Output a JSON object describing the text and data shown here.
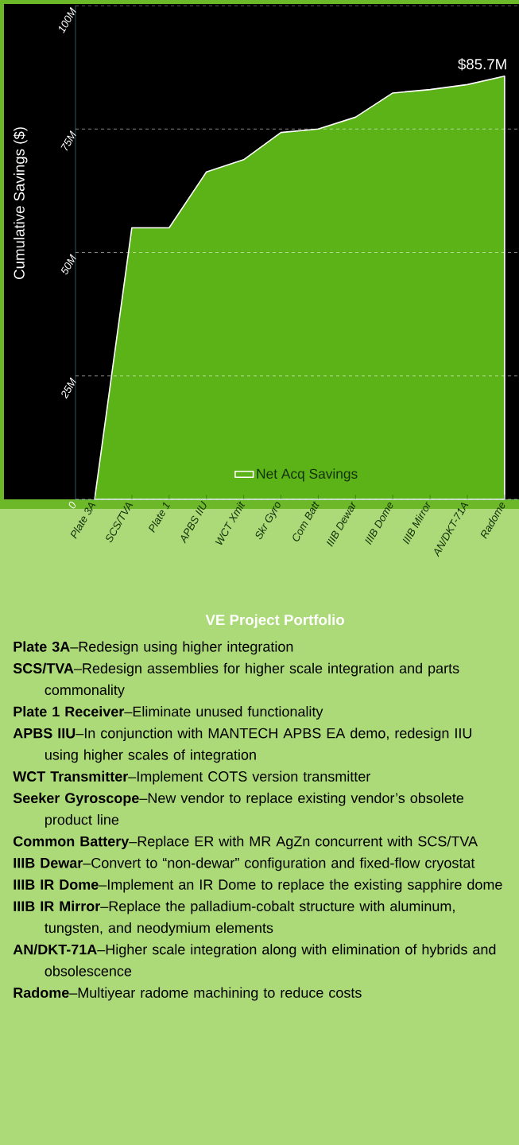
{
  "chart_data": {
    "type": "area",
    "ylabel": "Cumulative Savings ($)",
    "xlabel": "VE Project Portfolio",
    "categories": [
      "Plate 3A",
      "SCS/TVA",
      "Plate 1",
      "APBS IIU",
      "WCT Xmit",
      "Skr Gyro",
      "Com Batt",
      "IIIB Dewar",
      "IIIB Dome",
      "IIIB Mirror",
      "AN/DKT-71A",
      "Radome"
    ],
    "series": [
      {
        "name": "Net Acq Savings",
        "color": "#5cb318",
        "values": [
          0,
          55,
          55,
          66.3,
          68.8,
          74.3,
          75,
          77.4,
          82.3,
          83,
          84,
          85.7
        ]
      }
    ],
    "ylim": [
      0,
      100
    ],
    "yticks": [
      0,
      {
        "value": 25,
        "label": "25M"
      },
      {
        "value": 50,
        "label": "50M"
      },
      {
        "value": 75,
        "label": "75M"
      },
      {
        "value": 100,
        "label": "100M"
      }
    ],
    "grid": "y",
    "legend": "bottom",
    "marker": "none",
    "line_style": "solid",
    "annotations": [
      {
        "text": "$85.7M",
        "x": "Radome",
        "y": 85.7
      },
      "**Plate 3A**–Redesign using higher integration",
      "**SCS/TVA**–Redesign assemblies for higher scale integration and parts commonality",
      "**Plate 1 Receiver**–Eliminate unused functionality",
      "**APBS IIU**–In conjunction with MANTECH APBS EA demo, redesign IIU using higher scales of integration",
      "**WCT Transmitter**–Implement COTS version transmitter",
      "**Seeker Gyroscope**–New vendor to replace existing vendor’s obsolete product line",
      "**Common Battery**–Replace ER with MR AgZn concurrent with SCS/TVA",
      "**IIIB Dewar**–Convert to “non-dewar” configuration and fixed-flow cryostat",
      "**IIIB IR Dome**–Implement an IR Dome to replace the existing sapphire dome",
      "**IIIB IR Mirror**–Replace the palladium-cobalt structure with aluminum, tungsten, and neodymium elements",
      "**AN/DKT-71A**–Higher scale integration along with elimination of hybrids and obsolescence",
      "**Radome**–Multiyear radome machining to reduce costs"
    ]
  }
}
